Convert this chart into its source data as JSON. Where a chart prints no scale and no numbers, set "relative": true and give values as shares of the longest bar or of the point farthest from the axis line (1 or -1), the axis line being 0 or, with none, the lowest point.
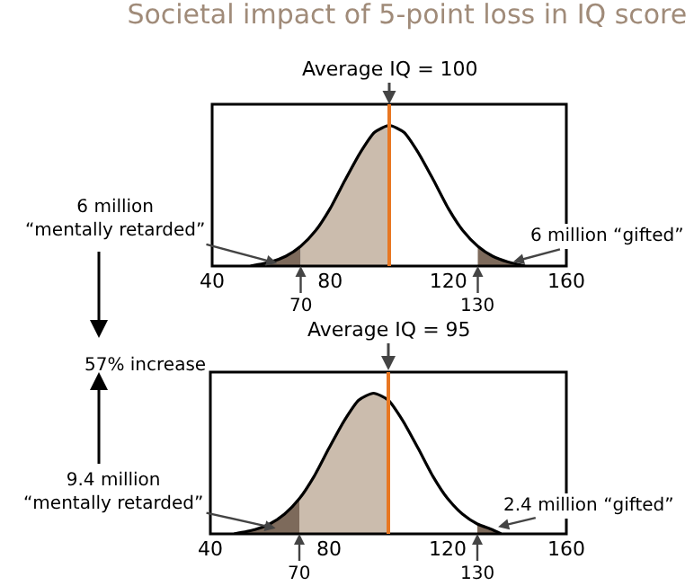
{
  "chart_data": [
    {
      "type": "area",
      "title": "Societal impact of 5-point loss in IQ score",
      "relative": true,
      "xlim": [
        40,
        160
      ],
      "xticks": [
        40,
        80,
        120,
        160
      ],
      "series": [
        {
          "type": "area",
          "color": "#7d6a5b",
          "x": [
            53,
            60,
            65,
            70
          ],
          "values": [
            0,
            0.03,
            0.07,
            0.14
          ]
        },
        {
          "type": "area",
          "color": "#cbbcad",
          "x": [
            70,
            75,
            80,
            85,
            90,
            95,
            100
          ],
          "values": [
            0.14,
            0.25,
            0.41,
            0.61,
            0.8,
            0.95,
            1
          ]
        },
        {
          "type": "area",
          "color": "#7d6a5b",
          "x": [
            130,
            135,
            140,
            146
          ],
          "values": [
            0.14,
            0.07,
            0.03,
            0
          ]
        },
        {
          "type": "line",
          "color": "#000000",
          "x": [
            53,
            60,
            65,
            70,
            75,
            80,
            85,
            90,
            95,
            100,
            105,
            110,
            115,
            120,
            125,
            130,
            135,
            140,
            146
          ],
          "values": [
            0,
            0.03,
            0.07,
            0.14,
            0.25,
            0.41,
            0.61,
            0.8,
            0.95,
            1,
            0.95,
            0.8,
            0.61,
            0.41,
            0.25,
            0.14,
            0.07,
            0.03,
            0
          ]
        }
      ],
      "ref_lines": [
        {
          "axis": "x",
          "value": 100,
          "label": "Average IQ = 100",
          "color": "#e87722"
        }
      ],
      "annotations": [
        {
          "text": "6 million\n“mentally retarded”",
          "x": 62,
          "y": 0.02
        },
        {
          "text": "6 million “gifted”",
          "x": 142,
          "y": 0.03
        },
        {
          "text": "70",
          "x": 70,
          "y": 0
        },
        {
          "text": "130",
          "x": 130,
          "y": 0
        }
      ]
    },
    {
      "type": "area",
      "relative": true,
      "xlim": [
        40,
        160
      ],
      "xticks": [
        40,
        80,
        120,
        160
      ],
      "series": [
        {
          "type": "area",
          "color": "#7d6a5b",
          "x": [
            48,
            55,
            60,
            65,
            70
          ],
          "values": [
            0,
            0.03,
            0.07,
            0.14,
            0.25
          ]
        },
        {
          "type": "area",
          "color": "#cbbcad",
          "x": [
            70,
            75,
            80,
            85,
            90,
            95,
            100
          ],
          "values": [
            0.25,
            0.41,
            0.61,
            0.8,
            0.95,
            1,
            0.95
          ]
        },
        {
          "type": "area",
          "color": "#7d6a5b",
          "x": [
            130,
            135,
            138
          ],
          "values": [
            0.07,
            0.03,
            0
          ]
        },
        {
          "type": "line",
          "color": "#000000",
          "x": [
            48,
            55,
            60,
            65,
            70,
            75,
            80,
            85,
            90,
            95,
            100,
            105,
            110,
            115,
            120,
            125,
            130,
            135,
            138
          ],
          "values": [
            0,
            0.03,
            0.07,
            0.14,
            0.25,
            0.41,
            0.61,
            0.8,
            0.95,
            1,
            0.95,
            0.8,
            0.61,
            0.41,
            0.25,
            0.14,
            0.07,
            0.03,
            0
          ]
        }
      ],
      "ref_lines": [
        {
          "axis": "x",
          "value": 100,
          "color": "#e87722"
        }
      ],
      "annotations": [
        {
          "text": "9.4 million\n“mentally retarded”",
          "x": 62,
          "y": 0.04
        },
        {
          "text": "2.4 million “gifted”",
          "x": 137,
          "y": 0.05
        },
        {
          "text": "70",
          "x": 70,
          "y": 0
        },
        {
          "text": "130",
          "x": 130,
          "y": 0
        },
        "57% increase",
        "Average IQ = 95"
      ]
    }
  ]
}
